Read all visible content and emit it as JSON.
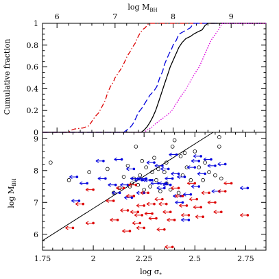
{
  "chart_data": [
    {
      "type": "line",
      "panel": "top",
      "xlabel": "log M",
      "xlabel_sub": "BH",
      "ylabel": "Cumulative fraction",
      "xlim": [
        5.75,
        9.6
      ],
      "ylim": [
        0,
        1
      ],
      "x_ticks": [
        "6",
        "7",
        "8",
        "9"
      ],
      "y_ticks": [
        "0",
        "0.2",
        "0.4",
        "0.6",
        "0.8",
        "1"
      ],
      "series": [
        {
          "style": "dash-dot",
          "color": "#dd0000",
          "points": [
            [
              5.75,
              0
            ],
            [
              6.2,
              0
            ],
            [
              6.25,
              0.02
            ],
            [
              6.3,
              0.03
            ],
            [
              6.45,
              0.04
            ],
            [
              6.55,
              0.06
            ],
            [
              6.6,
              0.1
            ],
            [
              6.65,
              0.14
            ],
            [
              6.72,
              0.18
            ],
            [
              6.78,
              0.24
            ],
            [
              6.83,
              0.29
            ],
            [
              6.87,
              0.36
            ],
            [
              6.92,
              0.42
            ],
            [
              6.97,
              0.46
            ],
            [
              7.0,
              0.5
            ],
            [
              7.05,
              0.54
            ],
            [
              7.1,
              0.58
            ],
            [
              7.16,
              0.64
            ],
            [
              7.21,
              0.7
            ],
            [
              7.26,
              0.74
            ],
            [
              7.3,
              0.78
            ],
            [
              7.35,
              0.82
            ],
            [
              7.38,
              0.86
            ],
            [
              7.42,
              0.9
            ],
            [
              7.47,
              0.94
            ],
            [
              7.52,
              0.96
            ],
            [
              7.58,
              1.0
            ],
            [
              9.6,
              1.0
            ]
          ]
        },
        {
          "style": "long-dash",
          "color": "#0000dd",
          "points": [
            [
              5.75,
              0
            ],
            [
              7.15,
              0
            ],
            [
              7.2,
              0.02
            ],
            [
              7.25,
              0.04
            ],
            [
              7.3,
              0.07
            ],
            [
              7.35,
              0.12
            ],
            [
              7.4,
              0.18
            ],
            [
              7.46,
              0.22
            ],
            [
              7.53,
              0.28
            ],
            [
              7.6,
              0.34
            ],
            [
              7.67,
              0.38
            ],
            [
              7.72,
              0.42
            ],
            [
              7.77,
              0.5
            ],
            [
              7.82,
              0.56
            ],
            [
              7.85,
              0.62
            ],
            [
              7.88,
              0.66
            ],
            [
              7.93,
              0.72
            ],
            [
              7.97,
              0.76
            ],
            [
              8.0,
              0.8
            ],
            [
              8.05,
              0.84
            ],
            [
              8.1,
              0.9
            ],
            [
              8.2,
              0.93
            ],
            [
              8.3,
              0.96
            ],
            [
              8.35,
              1.0
            ],
            [
              9.6,
              1.0
            ]
          ]
        },
        {
          "style": "solid",
          "color": "#000000",
          "points": [
            [
              5.75,
              0
            ],
            [
              7.45,
              0
            ],
            [
              7.5,
              0.02
            ],
            [
              7.55,
              0.05
            ],
            [
              7.6,
              0.09
            ],
            [
              7.65,
              0.14
            ],
            [
              7.7,
              0.2
            ],
            [
              7.75,
              0.28
            ],
            [
              7.8,
              0.36
            ],
            [
              7.85,
              0.44
            ],
            [
              7.9,
              0.52
            ],
            [
              7.95,
              0.6
            ],
            [
              8.0,
              0.66
            ],
            [
              8.05,
              0.72
            ],
            [
              8.1,
              0.78
            ],
            [
              8.15,
              0.82
            ],
            [
              8.22,
              0.86
            ],
            [
              8.3,
              0.88
            ],
            [
              8.35,
              0.9
            ],
            [
              8.42,
              0.92
            ],
            [
              8.5,
              0.94
            ],
            [
              8.55,
              0.98
            ],
            [
              8.6,
              1.0
            ],
            [
              9.6,
              1.0
            ]
          ]
        },
        {
          "style": "dotted",
          "color": "#dd00dd",
          "points": [
            [
              5.75,
              0
            ],
            [
              7.5,
              0
            ],
            [
              7.55,
              0.02
            ],
            [
              7.62,
              0.04
            ],
            [
              7.7,
              0.08
            ],
            [
              7.8,
              0.12
            ],
            [
              7.9,
              0.16
            ],
            [
              7.98,
              0.2
            ],
            [
              8.05,
              0.26
            ],
            [
              8.12,
              0.32
            ],
            [
              8.2,
              0.38
            ],
            [
              8.27,
              0.44
            ],
            [
              8.33,
              0.5
            ],
            [
              8.4,
              0.56
            ],
            [
              8.45,
              0.6
            ],
            [
              8.5,
              0.66
            ],
            [
              8.55,
              0.72
            ],
            [
              8.6,
              0.78
            ],
            [
              8.65,
              0.84
            ],
            [
              8.7,
              0.88
            ],
            [
              8.78,
              0.94
            ],
            [
              8.85,
              1.0
            ],
            [
              9.6,
              1.0
            ]
          ]
        }
      ]
    },
    {
      "type": "scatter",
      "panel": "bottom",
      "xlabel": "log σ",
      "xlabel_sub": "*",
      "ylabel": "log M",
      "ylabel_sub": "BH",
      "xlim": [
        1.75,
        2.85
      ],
      "ylim": [
        5.5,
        9.2
      ],
      "x_ticks": [
        "1.75",
        "2",
        "2.25",
        "2.5",
        "2.75"
      ],
      "y_ticks": [
        "6",
        "7",
        "8",
        "9"
      ],
      "relation_line": [
        [
          1.75,
          5.8
        ],
        [
          2.59,
          9.2
        ]
      ],
      "series": [
        {
          "marker": "open-circle",
          "color": "#000000",
          "points": [
            [
              1.79,
              8.25
            ],
            [
              1.88,
              7.7
            ],
            [
              1.98,
              7.95
            ],
            [
              2.07,
              8.05
            ],
            [
              2.1,
              7.3
            ],
            [
              2.13,
              7.45
            ],
            [
              2.15,
              7.8
            ],
            [
              2.17,
              8.15
            ],
            [
              2.18,
              7.5
            ],
            [
              2.19,
              7.6
            ],
            [
              2.2,
              7.75
            ],
            [
              2.21,
              8.75
            ],
            [
              2.22,
              7.55
            ],
            [
              2.23,
              7.85
            ],
            [
              2.24,
              8.3
            ],
            [
              2.25,
              7.4
            ],
            [
              2.26,
              8.1
            ],
            [
              2.28,
              7.5
            ],
            [
              2.29,
              7.95
            ],
            [
              2.3,
              8.4
            ],
            [
              2.31,
              7.7
            ],
            [
              2.32,
              8.05
            ],
            [
              2.33,
              7.35
            ],
            [
              2.35,
              7.95
            ],
            [
              2.36,
              7.6
            ],
            [
              2.36,
              8.25
            ],
            [
              2.38,
              7.4
            ],
            [
              2.39,
              8.75
            ],
            [
              2.4,
              8.95
            ],
            [
              2.42,
              7.3
            ],
            [
              2.43,
              8.45
            ],
            [
              2.44,
              7.85
            ],
            [
              2.45,
              8.55
            ],
            [
              2.46,
              8.1
            ],
            [
              2.48,
              7.7
            ],
            [
              2.5,
              8.6
            ],
            [
              2.52,
              8.1
            ],
            [
              2.54,
              7.7
            ],
            [
              2.55,
              8.25
            ],
            [
              2.57,
              7.95
            ],
            [
              2.6,
              7.85
            ],
            [
              2.62,
              9.05
            ],
            [
              2.62,
              8.75
            ],
            [
              2.63,
              7.75
            ]
          ]
        },
        {
          "marker": "filled-circle-left-arrow",
          "color": "#0000dd",
          "points": [
            [
              1.92,
              7.8
            ],
            [
              1.93,
              7.05
            ],
            [
              1.97,
              7.6
            ],
            [
              2.05,
              8.3
            ],
            [
              2.06,
              7.75
            ],
            [
              2.11,
              7.55
            ],
            [
              2.13,
              7.3
            ],
            [
              2.14,
              8.35
            ],
            [
              2.17,
              7.55
            ],
            [
              2.19,
              7.15
            ],
            [
              2.2,
              8.05
            ],
            [
              2.22,
              7.75
            ],
            [
              2.24,
              7.7
            ],
            [
              2.25,
              7.3
            ],
            [
              2.26,
              7.75
            ],
            [
              2.28,
              7.7
            ],
            [
              2.29,
              7.7
            ],
            [
              2.3,
              8.25
            ],
            [
              2.32,
              7.6
            ],
            [
              2.34,
              8.15
            ],
            [
              2.35,
              7.45
            ],
            [
              2.36,
              7.6
            ],
            [
              2.37,
              8.05
            ],
            [
              2.38,
              7.55
            ],
            [
              2.39,
              7.75
            ],
            [
              2.41,
              8.5
            ],
            [
              2.42,
              7.9
            ],
            [
              2.43,
              7.2
            ],
            [
              2.44,
              7.0
            ],
            [
              2.45,
              7.8
            ],
            [
              2.47,
              6.45
            ],
            [
              2.48,
              7.25
            ],
            [
              2.5,
              8.1
            ],
            [
              2.52,
              8.3
            ],
            [
              2.52,
              7.5
            ],
            [
              2.53,
              8.45
            ],
            [
              2.55,
              7.9
            ],
            [
              2.58,
              8.35
            ],
            [
              2.6,
              8.15
            ],
            [
              2.62,
              7.35
            ],
            [
              2.65,
              8.2
            ],
            [
              2.76,
              7.45
            ]
          ]
        },
        {
          "marker": "filled-circle-left-arrow",
          "color": "#dd0000",
          "points": [
            [
              1.9,
              6.2
            ],
            [
              1.95,
              6.95
            ],
            [
              2.0,
              7.4
            ],
            [
              2.0,
              6.35
            ],
            [
              2.1,
              7.05
            ],
            [
              2.12,
              6.45
            ],
            [
              2.15,
              7.45
            ],
            [
              2.17,
              6.75
            ],
            [
              2.18,
              6.1
            ],
            [
              2.2,
              7.2
            ],
            [
              2.21,
              7.55
            ],
            [
              2.22,
              6.7
            ],
            [
              2.23,
              6.35
            ],
            [
              2.24,
              6.6
            ],
            [
              2.25,
              6.9
            ],
            [
              2.25,
              6.2
            ],
            [
              2.27,
              7.3
            ],
            [
              2.29,
              6.65
            ],
            [
              2.3,
              6.95
            ],
            [
              2.31,
              6.5
            ],
            [
              2.34,
              7.1
            ],
            [
              2.35,
              6.15
            ],
            [
              2.36,
              6.95
            ],
            [
              2.38,
              6.7
            ],
            [
              2.39,
              5.6
            ],
            [
              2.4,
              6.45
            ],
            [
              2.42,
              7.45
            ],
            [
              2.44,
              7.2
            ],
            [
              2.46,
              6.9
            ],
            [
              2.47,
              6.6
            ],
            [
              2.5,
              7.6
            ],
            [
              2.51,
              7.1
            ],
            [
              2.53,
              6.85
            ],
            [
              2.54,
              6.55
            ],
            [
              2.57,
              7.3
            ],
            [
              2.6,
              7.0
            ],
            [
              2.63,
              6.7
            ],
            [
              2.65,
              7.35
            ],
            [
              2.68,
              7.6
            ],
            [
              2.76,
              6.6
            ]
          ]
        }
      ]
    }
  ]
}
